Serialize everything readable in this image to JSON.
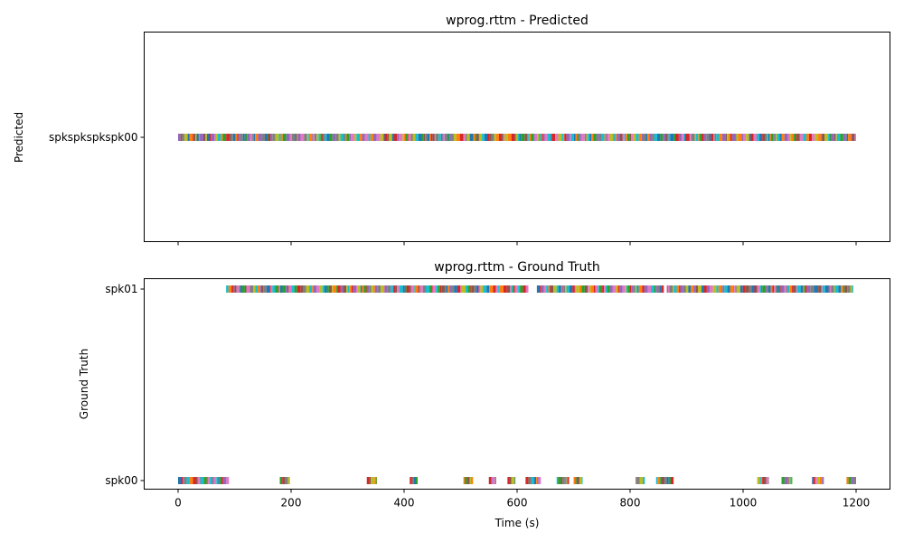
{
  "chart_data": [
    {
      "type": "timeline",
      "title": "wprog.rttm - Predicted",
      "ylabel": "Predicted",
      "xlabel": "",
      "xlim": [
        -60,
        1260
      ],
      "xticks": [
        0,
        200,
        400,
        600,
        800,
        1000,
        1200
      ],
      "show_xtick_labels": false,
      "rows": [
        "spkspkspkspk00"
      ],
      "segments": [
        {
          "row": 0,
          "start": 0,
          "end": 1200
        }
      ]
    },
    {
      "type": "timeline",
      "title": "wprog.rttm - Ground Truth",
      "ylabel": "Ground Truth",
      "xlabel": "Time (s)",
      "xlim": [
        -60,
        1260
      ],
      "xticks": [
        0,
        200,
        400,
        600,
        800,
        1000,
        1200
      ],
      "show_xtick_labels": true,
      "rows": [
        "spk00",
        "spk01"
      ],
      "segments": [
        {
          "row": 1,
          "start": 85,
          "end": 620
        },
        {
          "row": 1,
          "start": 635,
          "end": 860
        },
        {
          "row": 1,
          "start": 865,
          "end": 1195
        },
        {
          "row": 0,
          "start": 0,
          "end": 90
        },
        {
          "row": 0,
          "start": 180,
          "end": 198
        },
        {
          "row": 0,
          "start": 334,
          "end": 352
        },
        {
          "row": 0,
          "start": 410,
          "end": 424
        },
        {
          "row": 0,
          "start": 505,
          "end": 522
        },
        {
          "row": 0,
          "start": 550,
          "end": 563
        },
        {
          "row": 0,
          "start": 583,
          "end": 597
        },
        {
          "row": 0,
          "start": 615,
          "end": 642
        },
        {
          "row": 0,
          "start": 670,
          "end": 692
        },
        {
          "row": 0,
          "start": 700,
          "end": 716
        },
        {
          "row": 0,
          "start": 810,
          "end": 826
        },
        {
          "row": 0,
          "start": 846,
          "end": 877
        },
        {
          "row": 0,
          "start": 1025,
          "end": 1045
        },
        {
          "row": 0,
          "start": 1068,
          "end": 1087
        },
        {
          "row": 0,
          "start": 1122,
          "end": 1143
        },
        {
          "row": 0,
          "start": 1183,
          "end": 1200
        }
      ]
    }
  ],
  "colors": [
    "#1f77b4",
    "#ff7f0e",
    "#2ca02c",
    "#d62728",
    "#9467bd",
    "#8c564b",
    "#e377c2",
    "#7f7f7f",
    "#bcbd22",
    "#17becf"
  ]
}
